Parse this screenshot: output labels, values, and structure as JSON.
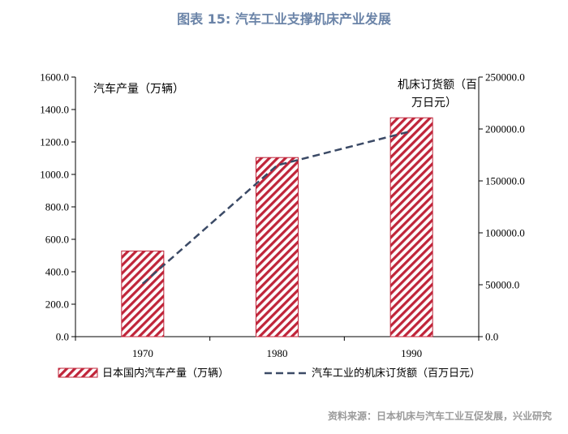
{
  "title": "图表 15: 汽车工业支撑机床产业发展",
  "source": "资料来源：日本机床与汽车工业互促发展，兴业研究",
  "colors": {
    "bar": "#c0253a",
    "line": "#3b4a66",
    "title": "#6b84a8"
  },
  "chart_data": {
    "type": "bar+line",
    "categories": [
      "1970",
      "1980",
      "1990"
    ],
    "series": [
      {
        "name": "日本国内汽车产量（万辆）",
        "axis": "left",
        "type": "bar",
        "values": [
          528,
          1104,
          1349
        ]
      },
      {
        "name": "汽车工业的机床订货额（百万日元）",
        "axis": "right",
        "type": "line",
        "values": [
          51000,
          165000,
          198000
        ]
      }
    ],
    "left_axis": {
      "label": "汽车产量（万辆）",
      "min": 0,
      "max": 1600,
      "step": 200,
      "ticks": [
        "0.0",
        "200.0",
        "400.0",
        "600.0",
        "800.0",
        "1000.0",
        "1200.0",
        "1400.0",
        "1600.0"
      ]
    },
    "right_axis": {
      "label_line1": "机床订货额（百",
      "label_line2": "万日元）",
      "min": 0,
      "max": 250000,
      "step": 50000,
      "ticks": [
        "0.0",
        "50000.0",
        "100000.0",
        "150000.0",
        "200000.0",
        "250000.0"
      ]
    }
  }
}
